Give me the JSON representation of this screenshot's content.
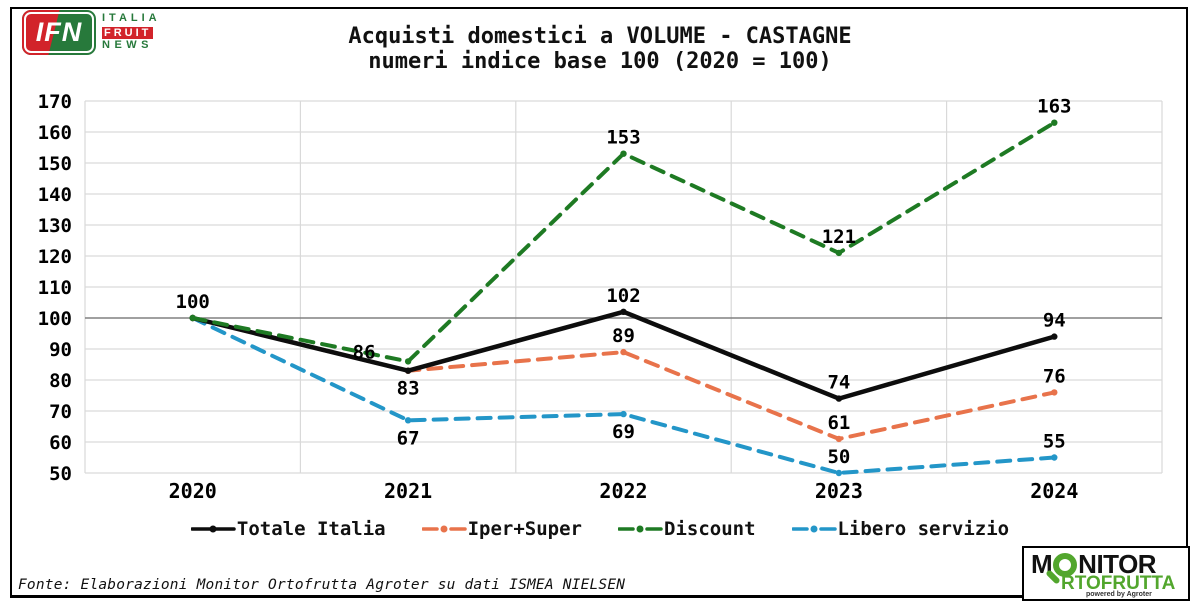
{
  "header": {
    "title_line1": "Acquisti domestici a VOLUME - CASTAGNE",
    "title_line2": "numeri indice base 100 (2020 = 100)"
  },
  "footer": {
    "source": "Fonte: Elaborazioni Monitor Ortofrutta Agroter su dati ISMEA NIELSEN"
  },
  "logos": {
    "ifn": {
      "acronym": "IFN",
      "italia": "ITALIA",
      "fruit": "FRUIT",
      "news": "NEWS",
      "red": "#D2232A",
      "green": "#27793B"
    },
    "monitor": {
      "line1_prefix": "M",
      "line1_suffix": "NITOR",
      "line2": "RTOFRUTTA",
      "powered": "powered by Agroter",
      "green": "#52A62D",
      "black": "#111111"
    }
  },
  "colors": {
    "grid": "#d9d9d9",
    "baseline": "#808080",
    "label": "#000000"
  },
  "chart_data": {
    "type": "line",
    "title": "Acquisti domestici a VOLUME - CASTAGNE",
    "subtitle": "numeri indice base 100 (2020 = 100)",
    "categories": [
      "2020",
      "2021",
      "2022",
      "2023",
      "2024"
    ],
    "series": [
      {
        "name": "Totale Italia",
        "color": "#0d0d0d",
        "dash": "solid",
        "values": [
          100,
          83,
          102,
          74,
          94
        ],
        "labels": [
          100,
          83,
          102,
          74,
          94
        ],
        "label_positions": [
          "above",
          "below",
          "above",
          "above",
          "above"
        ]
      },
      {
        "name": "Iper+Super",
        "color": "#E8734B",
        "dash": "dashed",
        "values": [
          100,
          83,
          89,
          61,
          76
        ],
        "labels": [
          null,
          null,
          89,
          61,
          76
        ],
        "label_positions": [
          null,
          null,
          "above",
          "above",
          "above"
        ]
      },
      {
        "name": "Discount",
        "color": "#1E7A23",
        "dash": "dashed",
        "values": [
          100,
          86,
          153,
          121,
          163
        ],
        "labels": [
          null,
          86,
          153,
          121,
          163
        ],
        "label_positions": [
          null,
          "above-left",
          "above",
          "above",
          "above"
        ]
      },
      {
        "name": "Libero servizio",
        "color": "#2396C8",
        "dash": "dashed",
        "values": [
          100,
          67,
          69,
          50,
          55
        ],
        "labels": [
          null,
          67,
          69,
          50,
          55
        ],
        "label_positions": [
          null,
          "below",
          "below",
          "above",
          "above"
        ]
      }
    ],
    "ylim": [
      50,
      170
    ],
    "ytick_step": 10,
    "baseline_value": 100,
    "grid": true,
    "legend_position": "bottom"
  }
}
